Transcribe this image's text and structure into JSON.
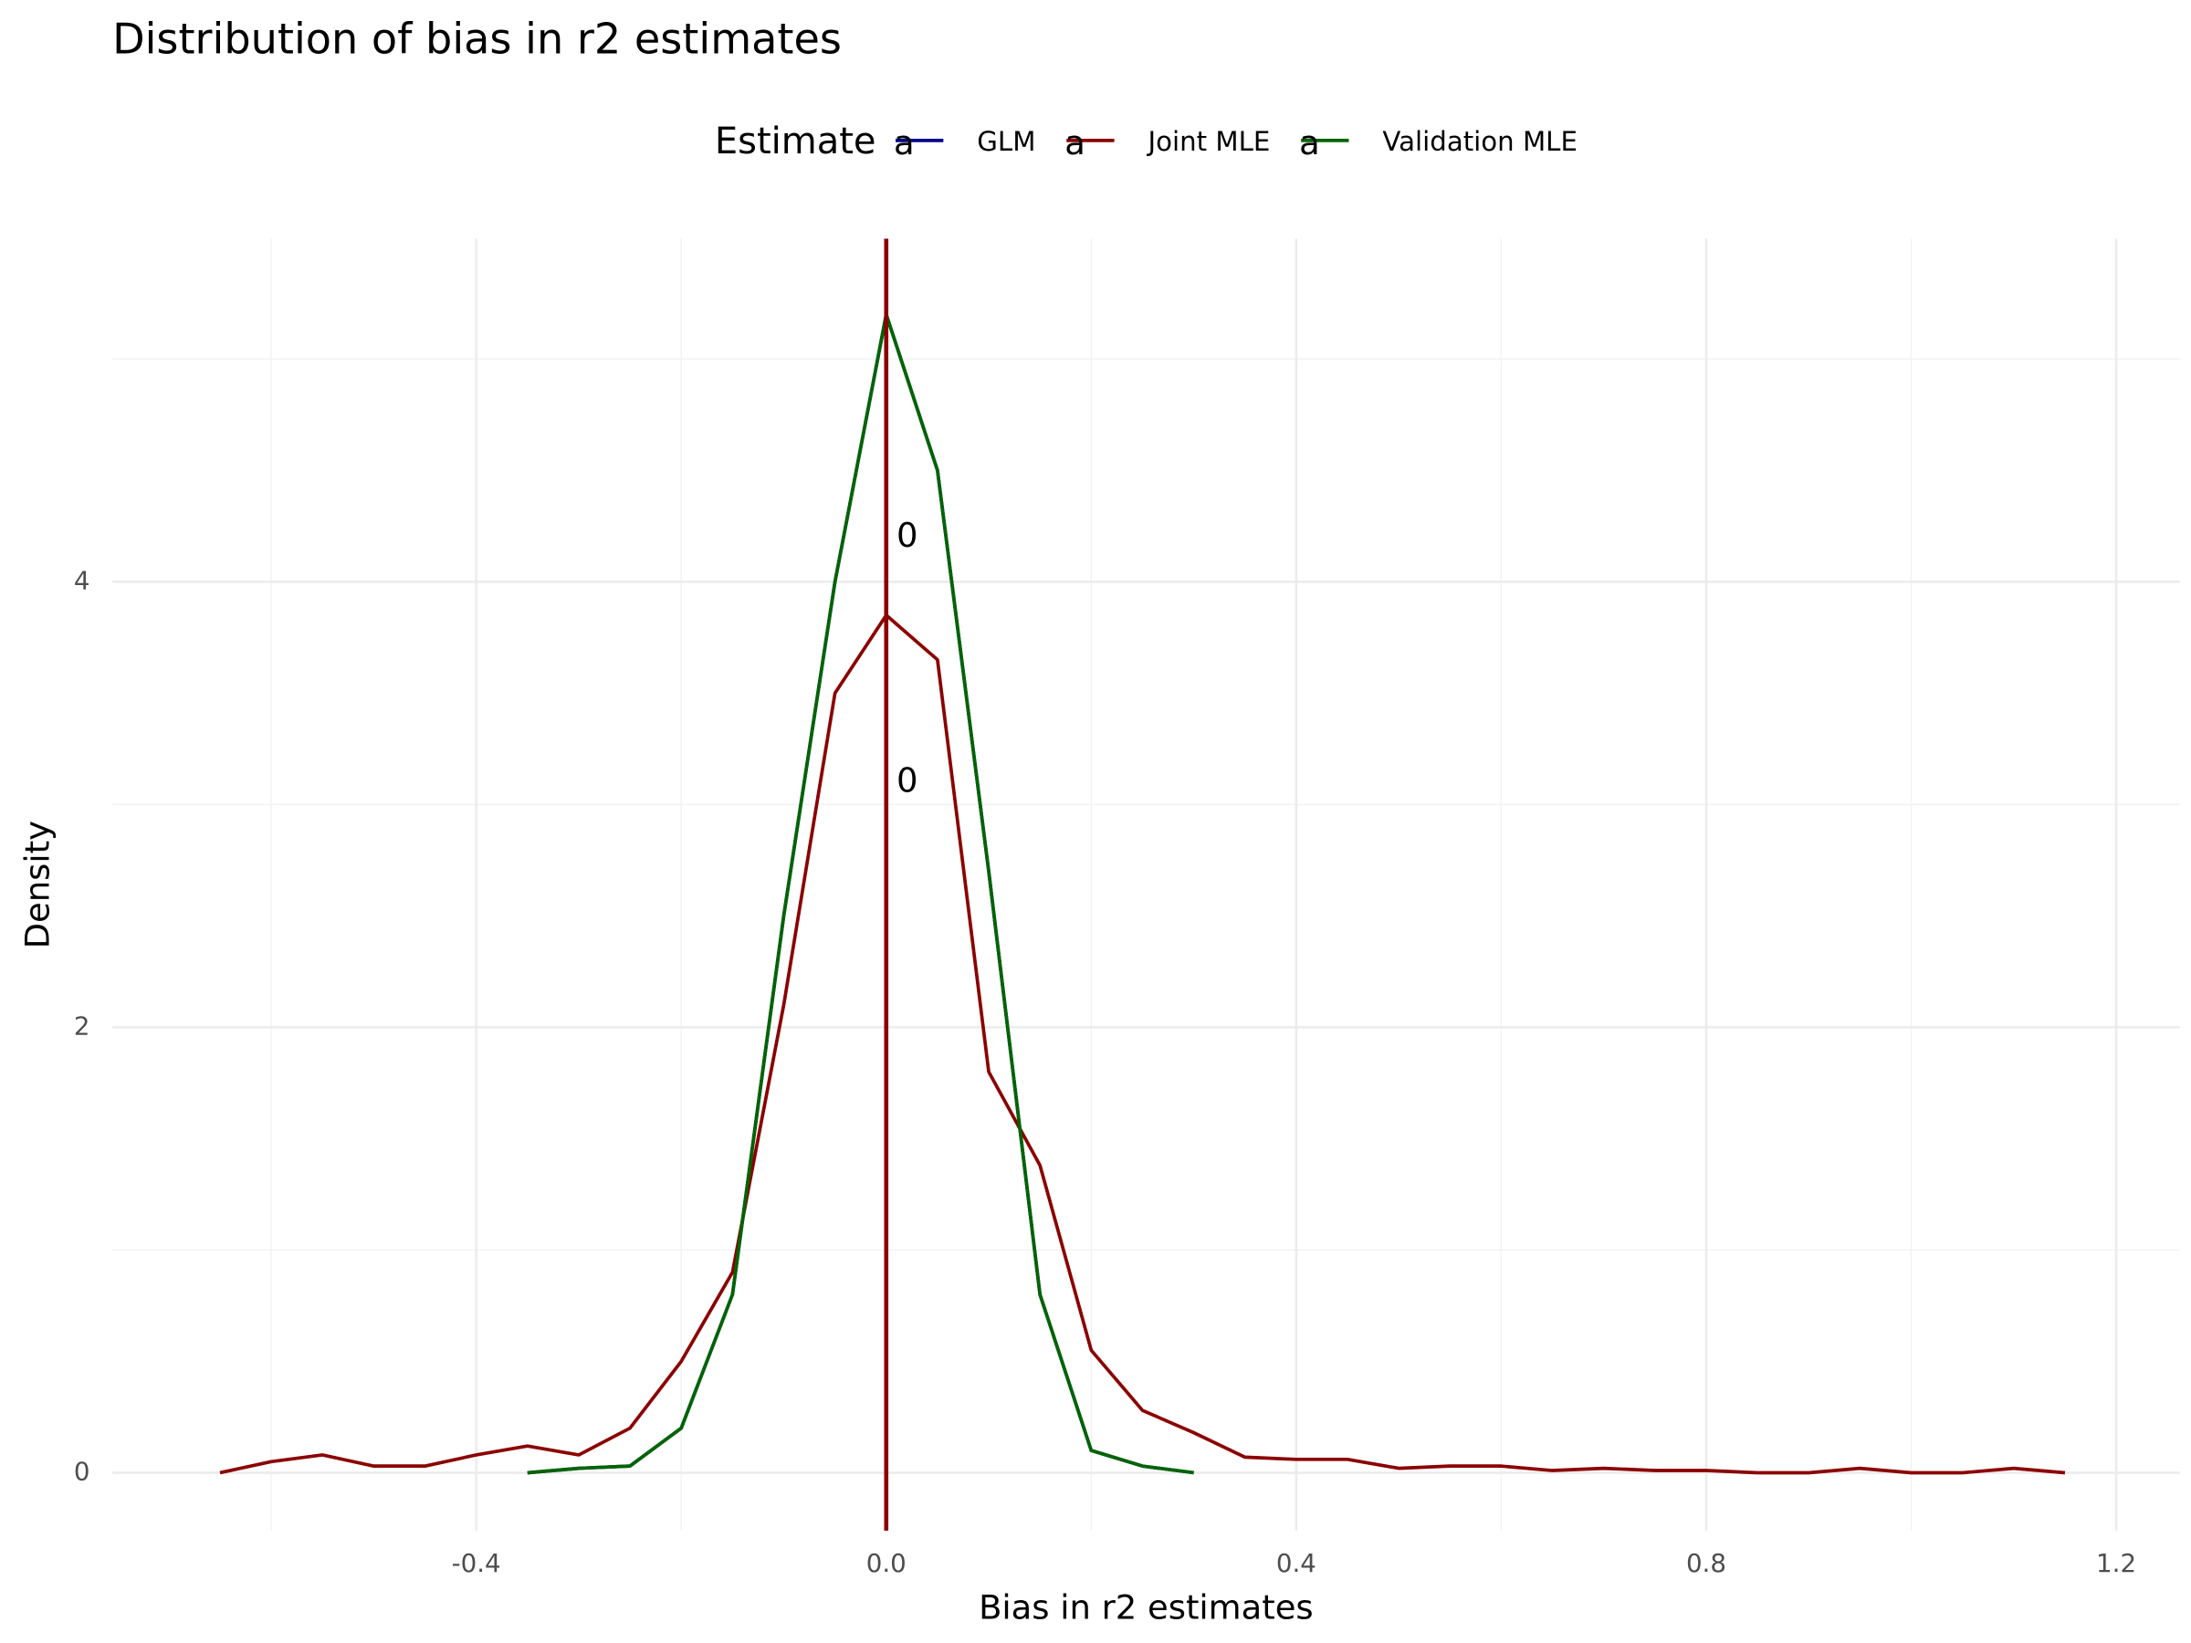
{
  "chart_data": {
    "type": "line",
    "title": "Distribution of bias in r2 estimates",
    "xlabel": "Bias in r2 estimates",
    "ylabel": "Density",
    "legend_title": "Estimate",
    "legend_key_glyph": "a",
    "legend_position": "top",
    "x": [
      -0.65,
      -0.6,
      -0.55,
      -0.5,
      -0.45,
      -0.4,
      -0.35,
      -0.3,
      -0.25,
      -0.2,
      -0.15,
      -0.1,
      -0.05,
      0,
      0.05,
      0.1,
      0.15,
      0.2,
      0.25,
      0.3,
      0.35,
      0.4,
      0.45,
      0.5,
      0.55,
      0.6,
      0.65,
      0.7,
      0.75,
      0.8,
      0.85,
      0.9,
      0.95,
      1.0,
      1.05,
      1.1,
      1.15
    ],
    "series": [
      {
        "name": "GLM",
        "color": "#00008b",
        "values": [
          null,
          null,
          null,
          null,
          null,
          null,
          0,
          0.02,
          0.03,
          0.2,
          0.8,
          2.5,
          4.0,
          5.2,
          4.5,
          2.7,
          0.8,
          0.1,
          0.03,
          0,
          null,
          null,
          null,
          null,
          null,
          null,
          null,
          null,
          null,
          null,
          null,
          null,
          null,
          null,
          null,
          null,
          null
        ]
      },
      {
        "name": "Joint MLE",
        "color": "#8b0000",
        "values": [
          0,
          0.05,
          0.08,
          0.03,
          0.03,
          0.08,
          0.12,
          0.08,
          0.2,
          0.5,
          0.9,
          2.1,
          3.5,
          3.85,
          3.65,
          1.8,
          1.38,
          0.55,
          0.28,
          0.18,
          0.07,
          0.06,
          0.06,
          0.02,
          0.03,
          0.03,
          0.01,
          0.02,
          0.01,
          0.01,
          0,
          0,
          0.02,
          0,
          0,
          0.02,
          0
        ]
      },
      {
        "name": "Validation MLE",
        "color": "#006400",
        "values": [
          null,
          null,
          null,
          null,
          null,
          null,
          0,
          0.02,
          0.03,
          0.2,
          0.8,
          2.5,
          4.0,
          5.2,
          4.5,
          2.7,
          0.8,
          0.1,
          0.03,
          0,
          null,
          null,
          null,
          null,
          null,
          null,
          null,
          null,
          null,
          null,
          null,
          null,
          null,
          null,
          null,
          null,
          null
        ]
      }
    ],
    "vline": {
      "x": 0,
      "color": "#8b0000"
    },
    "annotations": [
      {
        "text": "0",
        "x": 0.01,
        "y": 4.2,
        "color": "#006400"
      },
      {
        "text": "0",
        "x": 0.01,
        "y": 3.1,
        "color": "#8b0000"
      }
    ],
    "xlim": [
      -0.755,
      1.262
    ],
    "ylim": [
      -0.26,
      5.54
    ],
    "xticks": [
      -0.4,
      {
        "value": 0,
        "label": "0.0"
      },
      0.4,
      0.8,
      1.2
    ],
    "yticks": [
      0,
      2,
      4
    ],
    "x_minor_ticks": [
      -0.6,
      -0.2,
      0.2,
      0.6,
      1.0
    ],
    "y_minor_ticks": [
      1,
      3,
      5
    ],
    "grid": true
  }
}
